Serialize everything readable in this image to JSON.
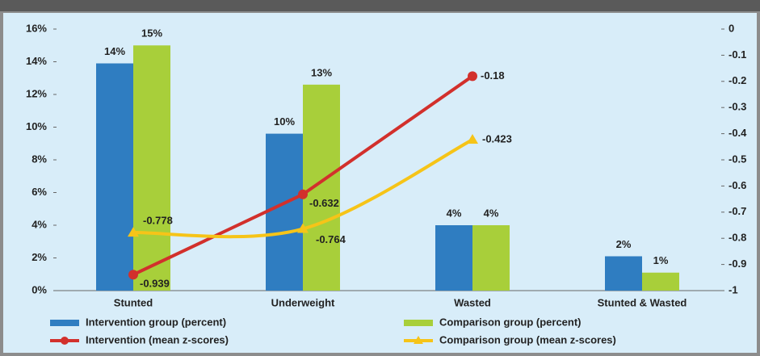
{
  "chart_data": {
    "type": "bar-line",
    "categories": [
      "Stunted",
      "Underweight",
      "Wasted",
      "Stunted & Wasted"
    ],
    "series": [
      {
        "name": "Intervention group (percent)",
        "color": "#2f7dc1",
        "values": [
          13.9,
          9.6,
          4.0,
          2.1
        ],
        "value_labels": [
          "14%",
          "10%",
          "4%",
          "2%"
        ]
      },
      {
        "name": "Comparison group (percent)",
        "color": "#a8cf3a",
        "values": [
          15.0,
          12.6,
          4.0,
          1.1
        ],
        "value_labels": [
          "15%",
          "13%",
          "4%",
          "1%"
        ]
      },
      {
        "name": "Intervention (mean z-scores)",
        "color": "#d2302c",
        "axis": "y2",
        "marker": "circle",
        "values": [
          -0.939,
          -0.632,
          -0.18,
          null
        ]
      },
      {
        "name": "Comparison group (mean z-scores)",
        "color": "#f6c418",
        "axis": "y2",
        "marker": "triangle",
        "values": [
          -0.778,
          -0.764,
          -0.423,
          null
        ]
      }
    ],
    "ylim": [
      0,
      16
    ],
    "yticks": [
      {
        "value": 0,
        "label": "0%"
      },
      {
        "value": 2,
        "label": "2%"
      },
      {
        "value": 4,
        "label": "4%"
      },
      {
        "value": 6,
        "label": "6%"
      },
      {
        "value": 8,
        "label": "8%"
      },
      {
        "value": 10,
        "label": "10%"
      },
      {
        "value": 12,
        "label": "12%"
      },
      {
        "value": 14,
        "label": "14%"
      },
      {
        "value": 16,
        "label": "16%"
      }
    ],
    "y2lim": [
      -1,
      0
    ],
    "y2ticks": [
      0,
      -0.1,
      -0.2,
      -0.3,
      -0.4,
      -0.5,
      -0.6,
      -0.7,
      -0.8,
      -0.9,
      -1
    ],
    "legend": "bottom"
  }
}
